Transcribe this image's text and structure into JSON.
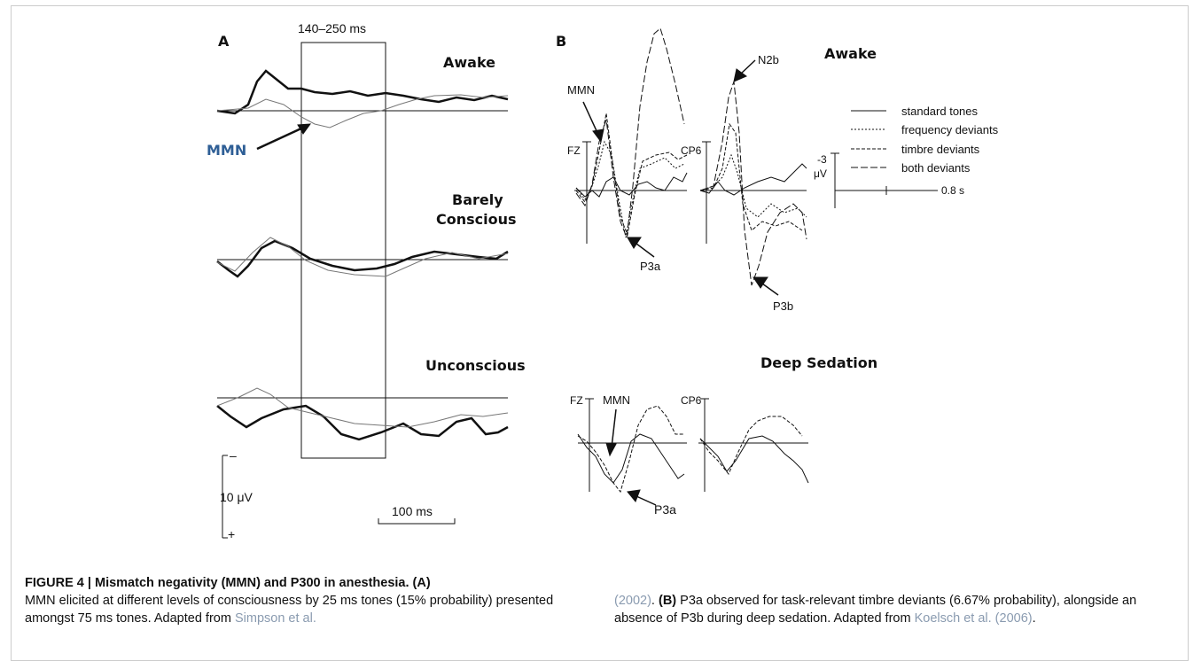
{
  "figure": {
    "panel_a": {
      "label": "A",
      "window": "140–250 ms",
      "awake": "Awake",
      "mmn": "MMN",
      "barely_1": "Barely",
      "barely_2": "Conscious",
      "unconscious": "Unconscious",
      "scale_minus": "–",
      "scale_amp": "10 μV",
      "scale_plus": "+",
      "scale_time": "100 ms"
    },
    "panel_b": {
      "label": "B",
      "awake": "Awake",
      "mmn": "MMN",
      "n2b": "N2b",
      "fz": "FZ",
      "cp6": "CP6",
      "p3a": "P3a",
      "p3b": "P3b",
      "legend": [
        "standard tones",
        "frequency deviants",
        "timbre deviants",
        "both deviants"
      ],
      "scale_amp_value": "-3",
      "scale_amp_unit": "μV",
      "scale_time": "0.8 s",
      "sedation": "Deep Sedation",
      "sed_fz": "FZ",
      "sed_mmn": "MMN",
      "sed_cp6": "CP6",
      "sed_p3a": "P3a"
    }
  },
  "caption": {
    "title": "FIGURE 4 | Mismatch negativity (MMN) and P300 in anesthesia. (A)",
    "text_a": "MMN elicited at different levels of consciousness by 25 ms tones (15% probability) presented amongst 75 ms tones. Adapted from",
    "ref_a_1": "Simpson et al.",
    "ref_a_2": "(2002)",
    "after_ref_a": ".",
    "label_b": "(B)",
    "text_b": "P3a observed for task-relevant timbre deviants (6.67% probability), alongside an absence of P3b during deep sedation. Adapted from",
    "ref_b": "Koelsch et al. (2006)",
    "after_ref_b": "."
  }
}
